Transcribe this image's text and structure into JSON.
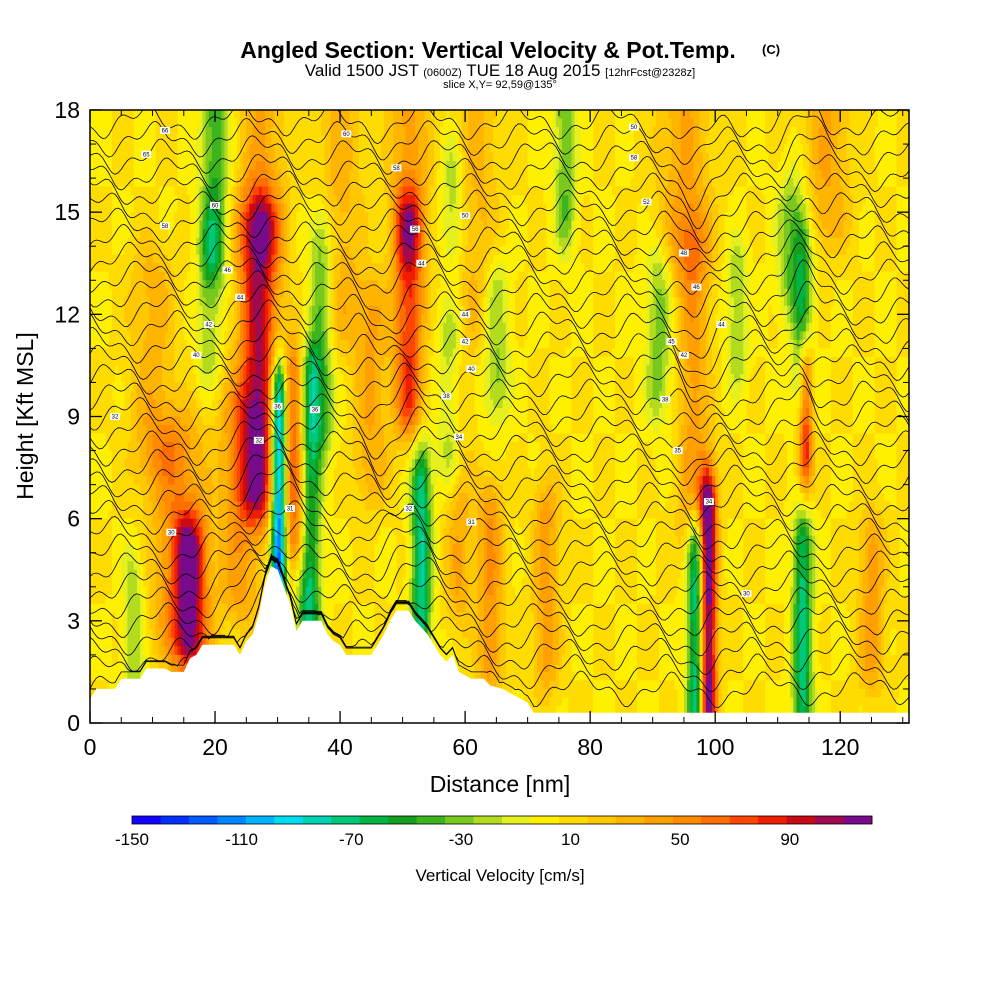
{
  "chart_data": {
    "type": "heatmap",
    "title": "Angled Section: Vertical Velocity & Pot.Temp.",
    "title_units": "(C)",
    "subtitle_parts": [
      "Valid 1500 JST ",
      "(0600Z)",
      " TUE 18 Aug 2015 ",
      "[12hrFcst@2328z]"
    ],
    "slice_text": "slice X,Y= 92,59@135°",
    "xlabel": "Distance [nm]",
    "ylabel": "Height [Kft MSL]",
    "xlim": [
      0,
      131
    ],
    "ylim": [
      0,
      18
    ],
    "xticks": [
      0,
      20,
      40,
      60,
      80,
      100,
      120
    ],
    "yticks": [
      0,
      3,
      6,
      9,
      12,
      15,
      18
    ],
    "colorbar": {
      "title": "Vertical Velocity [cm/s]",
      "min": -150,
      "max": 110,
      "step": 10,
      "tick_labels": [
        -150,
        -110,
        -70,
        -30,
        10,
        50,
        90
      ],
      "colors": [
        "#1400ff",
        "#0030ff",
        "#005aff",
        "#0085ff",
        "#00b4ff",
        "#00dcf0",
        "#00d2b4",
        "#00c878",
        "#00b444",
        "#14a01e",
        "#3cb41e",
        "#78c81e",
        "#b4dc1e",
        "#e6f01e",
        "#fff000",
        "#ffdc00",
        "#ffc800",
        "#ffb400",
        "#ffa000",
        "#ff8c00",
        "#ff6e00",
        "#ff4600",
        "#f01e00",
        "#c80a14",
        "#a00a50",
        "#780a8c"
      ]
    },
    "velocity_features": [
      {
        "x": 27.0,
        "ybot": 7,
        "ytop": 14.5,
        "w": 2.2,
        "v": 90
      },
      {
        "x": 16.0,
        "ybot": 2.5,
        "ytop": 5.0,
        "w": 1.8,
        "v": 85
      },
      {
        "x": 14.0,
        "ybot": 3.0,
        "ytop": 8.0,
        "w": 3.0,
        "v": 40
      },
      {
        "x": 24.0,
        "ybot": 4.0,
        "ytop": 9.0,
        "w": 2.5,
        "v": 35
      },
      {
        "x": 33.0,
        "ybot": 5.5,
        "ytop": 10.0,
        "w": 1.5,
        "v": 70
      },
      {
        "x": 51.0,
        "ybot": 9.5,
        "ytop": 14.5,
        "w": 1.6,
        "v": 70
      },
      {
        "x": 51.0,
        "ybot": 14.5,
        "ytop": 18,
        "w": 2.2,
        "v": 35
      },
      {
        "x": 45.0,
        "ybot": 7.5,
        "ytop": 12.0,
        "w": 2.0,
        "v": 30
      },
      {
        "x": 27.5,
        "ybot": 14.5,
        "ytop": 18,
        "w": 2.5,
        "v": 30
      },
      {
        "x": 98.8,
        "ybot": 0.5,
        "ytop": 6.3,
        "w": 1.0,
        "v": 120
      },
      {
        "x": 96.5,
        "ybot": 6.0,
        "ytop": 14.0,
        "w": 1.8,
        "v": 35
      },
      {
        "x": 114.5,
        "ybot": 8.0,
        "ytop": 10.0,
        "w": 0.8,
        "v": 80
      },
      {
        "x": 95.0,
        "ybot": 14.0,
        "ytop": 18,
        "w": 3.0,
        "v": 30
      },
      {
        "x": 118.0,
        "ybot": 15.0,
        "ytop": 18,
        "w": 2.5,
        "v": 30
      },
      {
        "x": 64.0,
        "ybot": 2.0,
        "ytop": 6.0,
        "w": 1.5,
        "v": 40
      },
      {
        "x": 73.0,
        "ybot": 2.0,
        "ytop": 6.0,
        "w": 1.5,
        "v": 35
      },
      {
        "x": 59.0,
        "ybot": 4.0,
        "ytop": 10.0,
        "w": 1.5,
        "v": 30
      },
      {
        "x": 10.0,
        "ybot": 8.0,
        "ytop": 13.0,
        "w": 2.5,
        "v": 25
      },
      {
        "x": 125.0,
        "ybot": 2.0,
        "ytop": 5.0,
        "w": 1.5,
        "v": 35
      },
      {
        "x": 40.0,
        "ybot": 12.0,
        "ytop": 18,
        "w": 2.5,
        "v": 25
      },
      {
        "x": 62.0,
        "ybot": 12.0,
        "ytop": 18,
        "w": 2.5,
        "v": 22
      },
      {
        "x": 30.2,
        "ybot": 4.7,
        "ytop": 9.5,
        "w": 0.9,
        "v": -140
      },
      {
        "x": 35.0,
        "ybot": 2.5,
        "ytop": 10.0,
        "w": 1.3,
        "v": -80
      },
      {
        "x": 53.0,
        "ybot": 2.0,
        "ytop": 7.0,
        "w": 1.1,
        "v": -80
      },
      {
        "x": 97.0,
        "ybot": 0.5,
        "ytop": 5.0,
        "w": 1.0,
        "v": -90
      },
      {
        "x": 114.0,
        "ybot": 0.5,
        "ytop": 5.0,
        "w": 1.1,
        "v": -75
      },
      {
        "x": 114.0,
        "ybot": 10.0,
        "ytop": 14.0,
        "w": 1.1,
        "v": -50
      },
      {
        "x": 37.0,
        "ybot": 9.0,
        "ytop": 14.0,
        "w": 1.4,
        "v": -45
      },
      {
        "x": 58.0,
        "ybot": 8.0,
        "ytop": 11.0,
        "w": 1.5,
        "v": -40
      },
      {
        "x": 65.0,
        "ybot": 10.0,
        "ytop": 12.5,
        "w": 1.5,
        "v": -35
      },
      {
        "x": 20.0,
        "ybot": 14.0,
        "ytop": 18,
        "w": 1.5,
        "v": -50
      },
      {
        "x": 19.0,
        "ybot": 11.0,
        "ytop": 14.0,
        "w": 1.3,
        "v": -30
      },
      {
        "x": 76.0,
        "ybot": 15.0,
        "ytop": 18,
        "w": 1.2,
        "v": -40
      },
      {
        "x": 91.0,
        "ybot": 10.0,
        "ytop": 13.0,
        "w": 1.5,
        "v": -35
      },
      {
        "x": 112.0,
        "ybot": 13.0,
        "ytop": 15.0,
        "w": 1.5,
        "v": -35
      },
      {
        "x": 103.5,
        "ybot": 11.0,
        "ytop": 13.0,
        "w": 1.2,
        "v": -30
      },
      {
        "x": 7.0,
        "ybot": 0.5,
        "ytop": 4.0,
        "w": 1.2,
        "v": -30
      },
      {
        "x": 58.0,
        "ybot": 14.5,
        "ytop": 16.0,
        "w": 1.2,
        "v": -30
      }
    ],
    "terrain": [
      [
        0,
        0.7
      ],
      [
        1,
        1.0
      ],
      [
        4,
        1.0
      ],
      [
        5,
        1.3
      ],
      [
        8,
        1.3
      ],
      [
        9,
        1.6
      ],
      [
        12,
        1.6
      ],
      [
        13,
        1.5
      ],
      [
        15,
        1.5
      ],
      [
        16,
        1.9
      ],
      [
        17,
        2.0
      ],
      [
        18,
        2.3
      ],
      [
        23,
        2.3
      ],
      [
        24,
        2.0
      ],
      [
        25,
        2.4
      ],
      [
        26,
        2.6
      ],
      [
        27,
        3.2
      ],
      [
        28,
        4.1
      ],
      [
        29,
        4.6
      ],
      [
        30,
        4.5
      ],
      [
        31,
        4.0
      ],
      [
        32,
        3.5
      ],
      [
        33,
        2.7
      ],
      [
        34,
        3.0
      ],
      [
        37,
        3.0
      ],
      [
        38,
        2.6
      ],
      [
        39,
        2.4
      ],
      [
        40,
        2.3
      ],
      [
        41,
        2.0
      ],
      [
        45,
        2.0
      ],
      [
        46,
        2.3
      ],
      [
        47,
        2.6
      ],
      [
        48,
        3.0
      ],
      [
        49,
        3.3
      ],
      [
        51,
        3.3
      ],
      [
        52,
        3.0
      ],
      [
        53,
        2.8
      ],
      [
        54,
        2.6
      ],
      [
        55,
        2.3
      ],
      [
        56,
        2.0
      ],
      [
        57,
        1.8
      ],
      [
        58,
        2.0
      ],
      [
        59,
        1.5
      ],
      [
        61,
        1.3
      ],
      [
        63,
        1.3
      ],
      [
        64,
        1.1
      ],
      [
        66,
        1.0
      ],
      [
        68,
        0.8
      ],
      [
        70,
        0.6
      ],
      [
        71,
        0.3
      ],
      [
        131,
        0.3
      ]
    ],
    "contour_interval_k": 1,
    "contour_count": 34,
    "contour_labels": [
      {
        "x": 12,
        "y": 17.4,
        "text": "66"
      },
      {
        "x": 9,
        "y": 16.7,
        "text": "65"
      },
      {
        "x": 20,
        "y": 15.2,
        "text": "60"
      },
      {
        "x": 12,
        "y": 14.6,
        "text": "58"
      },
      {
        "x": 22,
        "y": 13.3,
        "text": "46"
      },
      {
        "x": 24,
        "y": 12.5,
        "text": "44"
      },
      {
        "x": 19,
        "y": 11.7,
        "text": "42"
      },
      {
        "x": 17,
        "y": 10.8,
        "text": "40"
      },
      {
        "x": 4,
        "y": 9.0,
        "text": "32"
      },
      {
        "x": 41,
        "y": 17.3,
        "text": "60"
      },
      {
        "x": 49,
        "y": 16.3,
        "text": "58"
      },
      {
        "x": 52,
        "y": 14.5,
        "text": "56"
      },
      {
        "x": 53,
        "y": 13.5,
        "text": "44"
      },
      {
        "x": 60,
        "y": 14.9,
        "text": "50"
      },
      {
        "x": 60,
        "y": 12.0,
        "text": "44"
      },
      {
        "x": 60,
        "y": 11.2,
        "text": "42"
      },
      {
        "x": 61,
        "y": 10.4,
        "text": "40"
      },
      {
        "x": 57,
        "y": 9.6,
        "text": "38"
      },
      {
        "x": 59,
        "y": 8.4,
        "text": "34"
      },
      {
        "x": 30,
        "y": 9.3,
        "text": "36"
      },
      {
        "x": 36,
        "y": 9.2,
        "text": "36"
      },
      {
        "x": 27,
        "y": 8.3,
        "text": "32"
      },
      {
        "x": 32,
        "y": 6.3,
        "text": "31"
      },
      {
        "x": 51,
        "y": 6.3,
        "text": "32"
      },
      {
        "x": 61,
        "y": 5.9,
        "text": "31"
      },
      {
        "x": 13,
        "y": 5.6,
        "text": "30"
      },
      {
        "x": 87,
        "y": 17.5,
        "text": "50"
      },
      {
        "x": 87,
        "y": 16.6,
        "text": "58"
      },
      {
        "x": 89,
        "y": 15.3,
        "text": "52"
      },
      {
        "x": 95,
        "y": 13.8,
        "text": "48"
      },
      {
        "x": 97,
        "y": 12.8,
        "text": "46"
      },
      {
        "x": 101,
        "y": 11.7,
        "text": "44"
      },
      {
        "x": 93,
        "y": 11.2,
        "text": "45"
      },
      {
        "x": 95,
        "y": 10.8,
        "text": "42"
      },
      {
        "x": 92,
        "y": 9.5,
        "text": "38"
      },
      {
        "x": 94,
        "y": 8.0,
        "text": "35"
      },
      {
        "x": 99,
        "y": 6.5,
        "text": "34"
      },
      {
        "x": 105,
        "y": 3.8,
        "text": "30"
      }
    ]
  }
}
